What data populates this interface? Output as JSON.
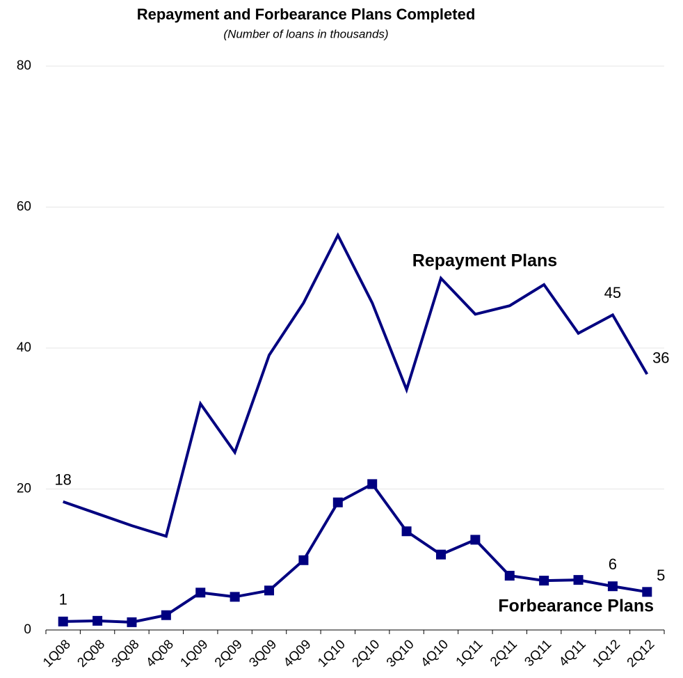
{
  "chart_data": {
    "type": "line",
    "title": "Repayment and Forbearance Plans Completed",
    "subtitle": "(Number of loans in thousands)",
    "categories": [
      "1Q08",
      "2Q08",
      "3Q08",
      "4Q08",
      "1Q09",
      "2Q09",
      "3Q09",
      "4Q09",
      "1Q10",
      "2Q10",
      "3Q10",
      "4Q10",
      "1Q11",
      "2Q11",
      "3Q11",
      "4Q11",
      "1Q12",
      "2Q12"
    ],
    "series": [
      {
        "name": "Repayment  Plans",
        "color": "#000080",
        "marker": "none",
        "values": [
          18.2,
          16.5,
          14.8,
          13.3,
          32.1,
          25.2,
          39.0,
          46.4,
          56.0,
          46.4,
          34.1,
          49.9,
          44.8,
          46.0,
          49.0,
          42.1,
          44.7,
          36.3
        ],
        "value_labels": [
          "18",
          null,
          null,
          null,
          null,
          null,
          null,
          null,
          null,
          null,
          null,
          null,
          null,
          null,
          null,
          null,
          "45",
          "36"
        ]
      },
      {
        "name": "Forbearance Plans",
        "color": "#000080",
        "marker": "square",
        "values": [
          1.2,
          1.3,
          1.1,
          2.1,
          5.3,
          4.7,
          5.6,
          9.9,
          18.1,
          20.7,
          14.0,
          10.7,
          12.8,
          7.7,
          7.0,
          7.1,
          6.2,
          5.4
        ],
        "value_labels": [
          "1",
          null,
          null,
          null,
          null,
          null,
          null,
          null,
          null,
          null,
          null,
          null,
          null,
          null,
          null,
          null,
          "6",
          "5"
        ]
      }
    ],
    "ylim": [
      0,
      80
    ],
    "yticks": [
      0,
      20,
      40,
      60,
      80
    ],
    "grid": true
  }
}
